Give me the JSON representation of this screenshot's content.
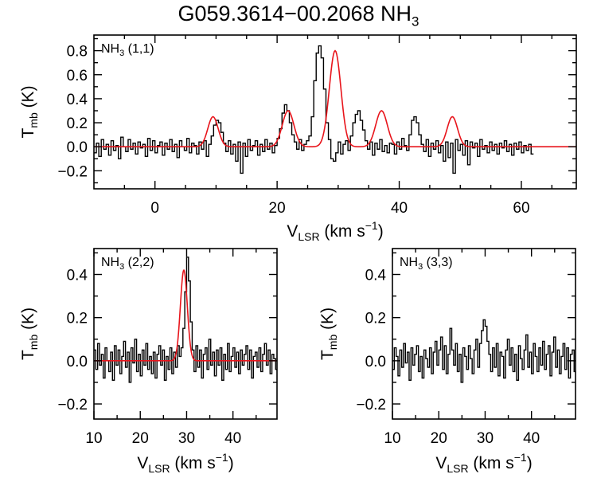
{
  "title": {
    "main": "G059.3614−00.2068 NH",
    "sub": "3"
  },
  "colors": {
    "spectrum": "#000000",
    "fit": "#e8141b",
    "frame": "#000000"
  },
  "axis_text": {
    "ylabel_main": "T",
    "ylabel_sub": "mb",
    "ylabel_unit": " (K)",
    "xlabel_main": "V",
    "xlabel_sub": "LSR",
    "xlabel_unit": " (km s",
    "xlabel_exp": "−1",
    "xlabel_close": ")"
  },
  "chart_data": [
    {
      "type": "line",
      "id": "top",
      "label_main": "NH",
      "label_sub": "3",
      "label_tail": " (1,1)",
      "xlim": [
        -10,
        69
      ],
      "ylim": [
        -0.35,
        0.93
      ],
      "xticks": [
        0,
        20,
        40,
        60
      ],
      "xtick_labels": [
        "0",
        "20",
        "40",
        "60"
      ],
      "xminor": [
        -5,
        5,
        10,
        15,
        25,
        30,
        35,
        45,
        50,
        55,
        65
      ],
      "yticks": [
        -0.2,
        0.0,
        0.2,
        0.4,
        0.6,
        0.8
      ],
      "ytick_labels": [
        "−0.2",
        "0.0",
        "0.2",
        "0.4",
        "0.6",
        "0.8"
      ],
      "yminor": [
        -0.3,
        -0.1,
        0.1,
        0.3,
        0.5,
        0.7,
        0.9
      ],
      "has_xlabel": true,
      "has_ylabel": true,
      "series": [
        {
          "kind": "spectrum",
          "x_start": -10.0,
          "x_step": 0.4,
          "values": [
            -0.05,
            0.03,
            -0.08,
            0.06,
            -0.02,
            0.02,
            -0.07,
            0.05,
            -0.03,
            0.01,
            -0.1,
            0.08,
            0.0,
            -0.04,
            0.06,
            -0.02,
            0.03,
            -0.06,
            0.04,
            -0.01,
            0.02,
            -0.08,
            0.07,
            -0.03,
            0.05,
            -0.05,
            0.01,
            0.04,
            -0.07,
            0.03,
            -0.02,
            0.06,
            -0.04,
            0.02,
            -0.09,
            0.05,
            0.0,
            -0.03,
            0.07,
            -0.05,
            0.03,
            0.01,
            -0.06,
            0.04,
            -0.02,
            0.05,
            -0.08,
            0.02,
            0.09,
            0.18,
            0.22,
            0.2,
            0.12,
            0.03,
            -0.04,
            0.05,
            -0.06,
            0.02,
            -0.12,
            0.04,
            -0.22,
            0.03,
            -0.08,
            0.06,
            -0.03,
            0.01,
            0.05,
            -0.07,
            0.02,
            -0.04,
            0.06,
            -0.02,
            0.03,
            -0.05,
            0.01,
            0.07,
            0.15,
            0.28,
            0.35,
            0.3,
            0.2,
            0.1,
            0.04,
            -0.02,
            0.06,
            -0.03,
            0.02,
            0.05,
            0.09,
            0.25,
            0.55,
            0.78,
            0.84,
            0.74,
            0.48,
            0.2,
            0.06,
            -0.1,
            -0.12,
            -0.05,
            0.04,
            -0.06,
            0.02,
            0.05,
            -0.03,
            0.09,
            0.2,
            0.27,
            0.3,
            0.22,
            0.14,
            0.05,
            -0.02,
            0.04,
            -0.07,
            0.03,
            -0.02,
            0.06,
            -0.04,
            0.01,
            -0.05,
            0.03,
            0.02,
            -0.06,
            0.04,
            -0.02,
            0.07,
            0.01,
            -0.03,
            0.1,
            0.22,
            0.25,
            0.2,
            0.1,
            0.02,
            -0.04,
            0.06,
            -0.08,
            0.03,
            -0.02,
            0.05,
            -0.05,
            0.01,
            -0.12,
            0.04,
            -0.09,
            0.03,
            -0.22,
            0.06,
            -0.03,
            0.02,
            -0.07,
            0.05,
            -0.15,
            0.04,
            -0.01,
            0.03,
            -0.08,
            0.06,
            -0.02,
            0.01,
            -0.05,
            0.04,
            -0.03,
            0.02,
            -0.06,
            0.03,
            -0.01,
            0.05,
            -0.04,
            0.02,
            -0.07,
            0.03,
            -0.02,
            0.04,
            -0.05,
            0.01,
            -0.03,
            0.02,
            -0.06
          ]
        },
        {
          "kind": "fit",
          "gaussians": [
            {
              "amp": 0.25,
              "center": 9.5,
              "sigma": 0.85
            },
            {
              "amp": 0.3,
              "center": 21.8,
              "sigma": 0.95
            },
            {
              "amp": 0.8,
              "center": 29.5,
              "sigma": 0.95
            },
            {
              "amp": 0.3,
              "center": 37.1,
              "sigma": 0.95
            },
            {
              "amp": 0.25,
              "center": 48.7,
              "sigma": 0.85
            }
          ]
        }
      ]
    },
    {
      "type": "line",
      "id": "bl",
      "label_main": "NH",
      "label_sub": "3",
      "label_tail": " (2,2)",
      "xlim": [
        10,
        49.5
      ],
      "ylim": [
        -0.27,
        0.52
      ],
      "xticks": [
        10,
        20,
        30,
        40
      ],
      "xtick_labels": [
        "10",
        "20",
        "30",
        "40"
      ],
      "xminor": [
        15,
        25,
        35,
        45
      ],
      "yticks": [
        -0.2,
        0.0,
        0.2,
        0.4
      ],
      "ytick_labels": [
        "−0.2",
        "0.0",
        "0.2",
        "0.4"
      ],
      "yminor": [
        -0.1,
        0.1,
        0.3,
        0.5
      ],
      "has_xlabel": true,
      "has_ylabel": true,
      "series": [
        {
          "kind": "spectrum",
          "x_start": 10.0,
          "x_step": 0.4,
          "values": [
            0.05,
            -0.04,
            0.08,
            -0.02,
            0.03,
            -0.08,
            0.06,
            0.0,
            -0.05,
            0.04,
            -0.09,
            0.07,
            -0.02,
            0.05,
            -0.06,
            0.02,
            0.09,
            -0.03,
            0.04,
            -0.1,
            0.06,
            -0.01,
            0.1,
            -0.05,
            0.03,
            -0.07,
            0.05,
            -0.02,
            0.08,
            -0.04,
            0.02,
            -0.06,
            0.04,
            -0.08,
            0.03,
            0.07,
            -0.02,
            0.05,
            -0.09,
            0.02,
            -0.04,
            0.06,
            -0.06,
            0.04,
            -0.03,
            0.07,
            0.02,
            0.06,
            0.15,
            0.32,
            0.48,
            0.37,
            0.18,
            0.05,
            -0.05,
            0.07,
            -0.03,
            0.05,
            -0.08,
            0.03,
            0.06,
            -0.04,
            0.1,
            -0.02,
            0.04,
            -0.07,
            0.05,
            -0.02,
            0.06,
            -0.09,
            0.03,
            -0.04,
            0.08,
            -0.05,
            0.02,
            0.06,
            -0.03,
            0.04,
            -0.06,
            0.05,
            -0.02,
            0.03,
            0.07,
            -0.04,
            0.05,
            -0.08,
            0.02,
            0.04,
            -0.03,
            0.06,
            -0.05,
            0.03,
            0.08,
            -0.02,
            0.05,
            -0.06,
            0.03,
            0.01,
            -0.04
          ]
        },
        {
          "kind": "fit",
          "gaussians": [
            {
              "amp": 0.42,
              "center": 29.4,
              "sigma": 0.75
            }
          ]
        }
      ]
    },
    {
      "type": "line",
      "id": "br",
      "label_main": "NH",
      "label_sub": "3",
      "label_tail": " (3,3)",
      "xlim": [
        10,
        49.5
      ],
      "ylim": [
        -0.27,
        0.52
      ],
      "xticks": [
        10,
        20,
        30,
        40
      ],
      "xtick_labels": [
        "10",
        "20",
        "30",
        "40"
      ],
      "xminor": [
        15,
        25,
        35,
        45
      ],
      "yticks": [
        -0.2,
        0.0,
        0.2,
        0.4
      ],
      "ytick_labels": [
        "−0.2",
        "0.0",
        "0.2",
        "0.4"
      ],
      "yminor": [
        -0.1,
        0.1,
        0.3,
        0.5
      ],
      "has_xlabel": true,
      "has_ylabel": true,
      "series": [
        {
          "kind": "spectrum",
          "x_start": 10.0,
          "x_step": 0.4,
          "values": [
            -0.04,
            0.06,
            0.02,
            -0.07,
            0.05,
            -0.03,
            0.08,
            -0.01,
            0.04,
            -0.09,
            0.06,
            -0.02,
            0.03,
            0.07,
            -0.05,
            0.02,
            -0.08,
            0.05,
            0.01,
            -0.03,
            0.06,
            -0.06,
            0.04,
            0.09,
            -0.02,
            0.05,
            0.11,
            -0.04,
            0.07,
            -0.06,
            0.03,
            0.15,
            0.05,
            -0.02,
            0.08,
            -0.05,
            0.03,
            -0.1,
            0.06,
            0.02,
            -0.04,
            0.07,
            0.01,
            -0.06,
            0.05,
            0.1,
            -0.03,
            0.08,
            0.14,
            0.19,
            0.16,
            0.09,
            0.03,
            -0.05,
            0.06,
            -0.03,
            0.08,
            -0.07,
            0.04,
            0.02,
            -0.08,
            0.05,
            0.1,
            -0.02,
            0.06,
            -0.05,
            0.03,
            -0.09,
            0.07,
            0.01,
            -0.04,
            0.05,
            0.12,
            -0.03,
            0.04,
            -0.06,
            0.08,
            0.02,
            -0.05,
            0.06,
            -0.02,
            0.09,
            -0.04,
            0.03,
            0.07,
            -0.07,
            0.04,
            0.11,
            -0.03,
            0.05,
            -0.06,
            0.02,
            0.08,
            -0.04,
            0.06,
            -0.08,
            0.03,
            0.05,
            -0.05
          ]
        }
      ]
    }
  ]
}
